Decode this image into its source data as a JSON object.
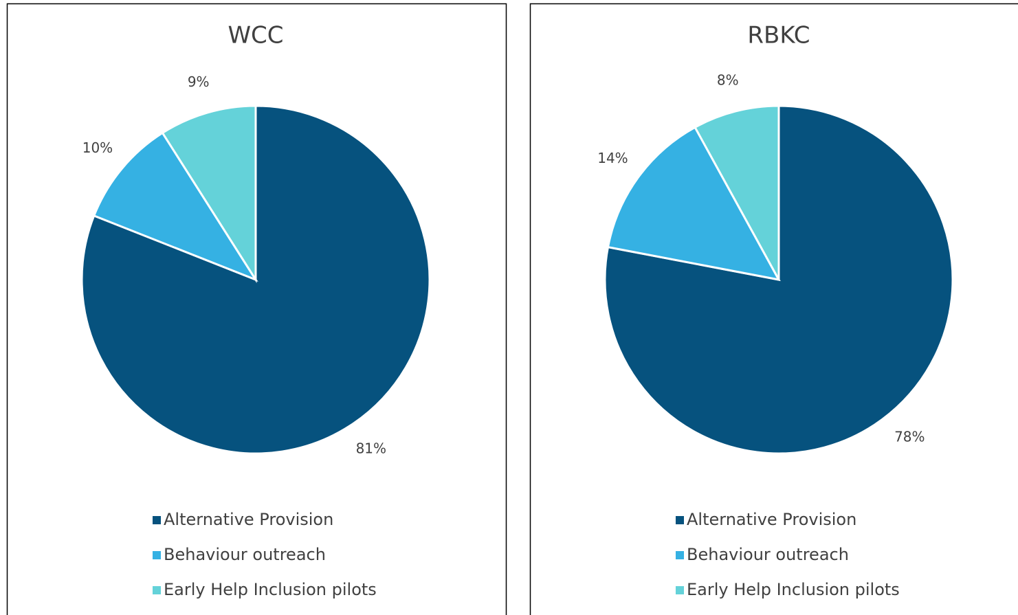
{
  "chart_data": [
    {
      "type": "pie",
      "title": "WCC",
      "categories": [
        "Alternative Provision",
        "Behaviour outreach",
        "Early Help Inclusion pilots"
      ],
      "values": [
        81,
        10,
        9
      ],
      "value_labels": [
        "81%",
        "10%",
        "9%"
      ],
      "colors": [
        "#06527e",
        "#35b1e3",
        "#64d2d9"
      ],
      "legend": "bottom"
    },
    {
      "type": "pie",
      "title": "RBKC",
      "categories": [
        "Alternative Provision",
        "Behaviour outreach",
        "Early Help Inclusion pilots"
      ],
      "values": [
        78,
        14,
        8
      ],
      "value_labels": [
        "78%",
        "14%",
        "8%"
      ],
      "colors": [
        "#06527e",
        "#35b1e3",
        "#64d2d9"
      ],
      "legend": "bottom"
    }
  ]
}
